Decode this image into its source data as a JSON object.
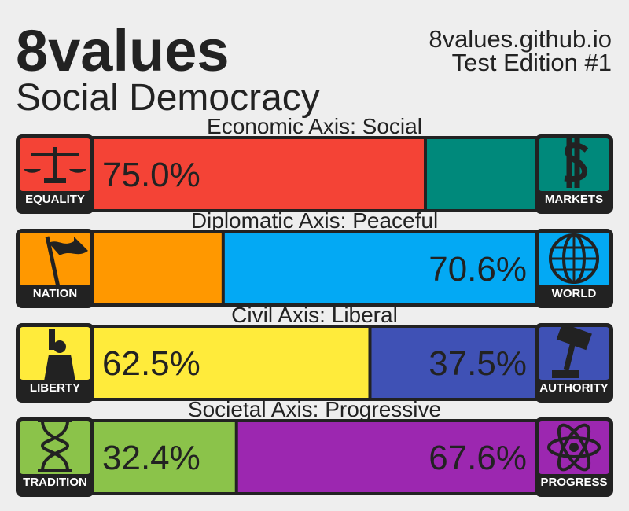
{
  "header": {
    "title": "8values",
    "subtitle": "Social Democracy",
    "site": "8values.github.io",
    "edition": "Test Edition #1"
  },
  "axes": [
    {
      "title": "Economic Axis: Social",
      "left": {
        "name": "EQUALITY",
        "value": 75.0,
        "value_label": "75.0%",
        "color": "#f44336"
      },
      "right": {
        "name": "MARKETS",
        "value": 25.0,
        "color": "#00897b"
      }
    },
    {
      "title": "Diplomatic Axis: Peaceful",
      "left": {
        "name": "NATION",
        "value": 29.4,
        "color": "#ff9800"
      },
      "right": {
        "name": "WORLD",
        "value": 70.6,
        "value_label": "70.6%",
        "color": "#03a9f4"
      }
    },
    {
      "title": "Civil Axis: Liberal",
      "left": {
        "name": "LIBERTY",
        "value": 62.5,
        "value_label": "62.5%",
        "color": "#ffeb3b"
      },
      "right": {
        "name": "AUTHORITY",
        "value": 37.5,
        "value_label": "37.5%",
        "color": "#3f51b5"
      }
    },
    {
      "title": "Societal Axis: Progressive",
      "left": {
        "name": "TRADITION",
        "value": 32.4,
        "value_label": "32.4%",
        "color": "#8bc34a"
      },
      "right": {
        "name": "PROGRESS",
        "value": 67.6,
        "value_label": "67.6%",
        "color": "#9c27b0"
      }
    }
  ]
}
